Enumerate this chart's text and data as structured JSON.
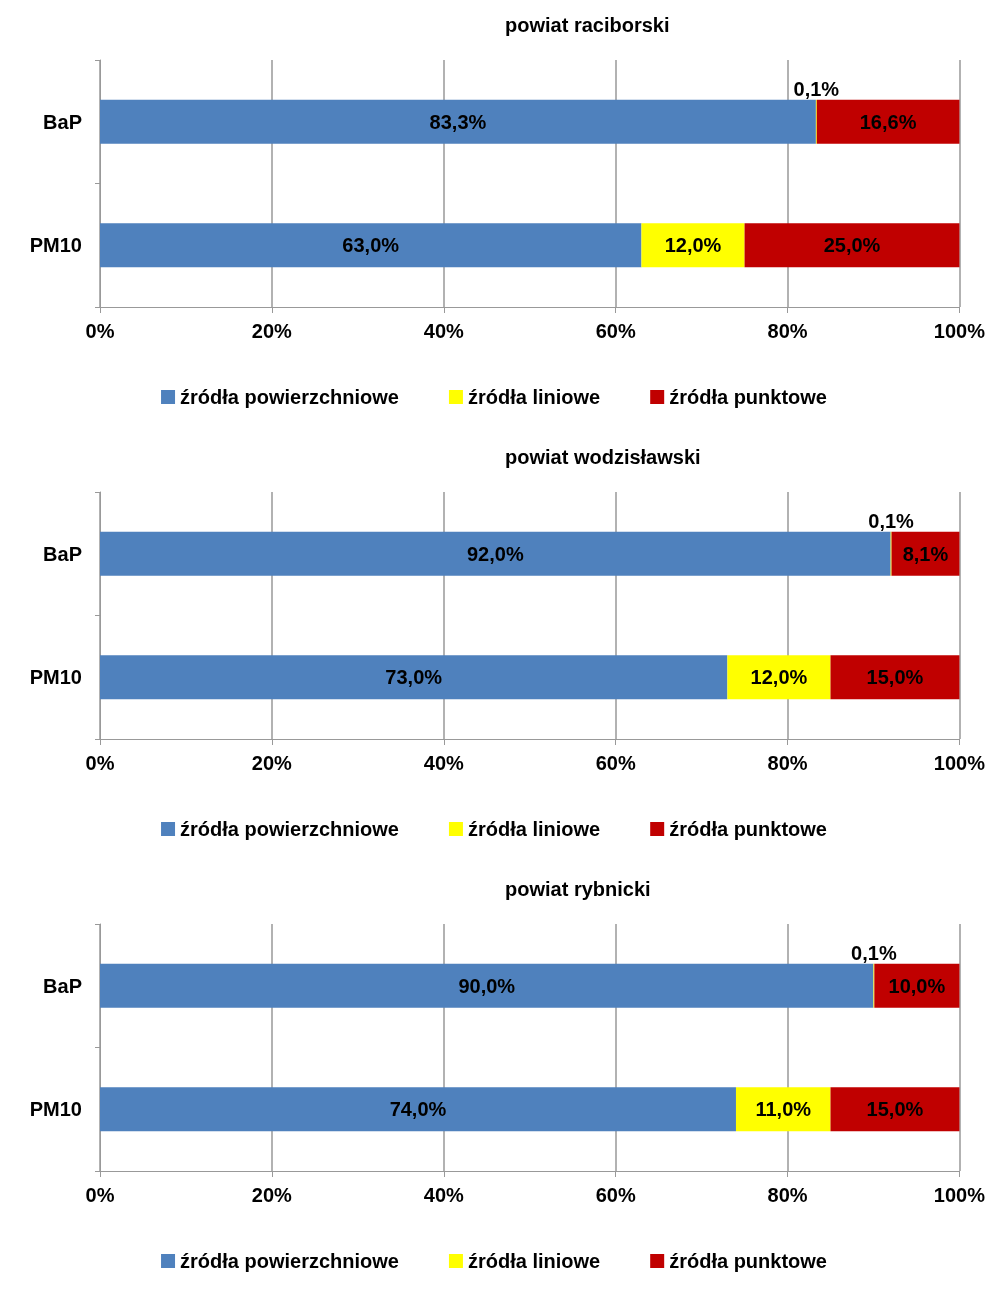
{
  "chart_data": [
    {
      "type": "bar",
      "title": "powiat raciborski",
      "orientation": "horizontal",
      "stacked": true,
      "categories": [
        "BaP",
        "PM10"
      ],
      "series": [
        {
          "name": "źródła powierzchniowe",
          "color": "#4f81bd",
          "values": [
            83.3,
            63.0
          ],
          "value_labels": [
            "83,3%",
            "63,0%"
          ]
        },
        {
          "name": "źródła liniowe",
          "color": "#ffff00",
          "values": [
            0.1,
            12.0
          ],
          "value_labels": [
            "0,1%",
            "12,0%"
          ]
        },
        {
          "name": "źródła punktowe",
          "color": "#c00000",
          "values": [
            16.6,
            25.0
          ],
          "value_labels": [
            "16,6%",
            "25,0%"
          ]
        }
      ],
      "xlim": [
        0,
        100
      ],
      "xticks": [
        {
          "value": 0,
          "label": "0%"
        },
        {
          "value": 20,
          "label": "20%"
        },
        {
          "value": 40,
          "label": "40%"
        },
        {
          "value": 60,
          "label": "60%"
        },
        {
          "value": 80,
          "label": "80%"
        },
        {
          "value": 100,
          "label": "100%"
        }
      ],
      "grid": "x",
      "legend": "bottom"
    },
    {
      "type": "bar",
      "title": "powiat wodzisławski",
      "orientation": "horizontal",
      "stacked": true,
      "categories": [
        "BaP",
        "PM10"
      ],
      "series": [
        {
          "name": "źródła powierzchniowe",
          "color": "#4f81bd",
          "values": [
            92.0,
            73.0
          ],
          "value_labels": [
            "92,0%",
            "73,0%"
          ]
        },
        {
          "name": "źródła liniowe",
          "color": "#ffff00",
          "values": [
            0.1,
            12.0
          ],
          "value_labels": [
            "0,1%",
            "12,0%"
          ]
        },
        {
          "name": "źródła punktowe",
          "color": "#c00000",
          "values": [
            8.1,
            15.0
          ],
          "value_labels": [
            "8,1%",
            "15,0%"
          ]
        }
      ],
      "xlim": [
        0,
        100
      ],
      "xticks": [
        {
          "value": 0,
          "label": "0%"
        },
        {
          "value": 20,
          "label": "20%"
        },
        {
          "value": 40,
          "label": "40%"
        },
        {
          "value": 60,
          "label": "60%"
        },
        {
          "value": 80,
          "label": "80%"
        },
        {
          "value": 100,
          "label": "100%"
        }
      ],
      "grid": "x",
      "legend": "bottom"
    },
    {
      "type": "bar",
      "title": "powiat rybnicki",
      "orientation": "horizontal",
      "stacked": true,
      "categories": [
        "BaP",
        "PM10"
      ],
      "series": [
        {
          "name": "źródła powierzchniowe",
          "color": "#4f81bd",
          "values": [
            90.0,
            74.0
          ],
          "value_labels": [
            "90,0%",
            "74,0%"
          ]
        },
        {
          "name": "źródła liniowe",
          "color": "#ffff00",
          "values": [
            0.1,
            11.0
          ],
          "value_labels": [
            "0,1%",
            "11,0%"
          ]
        },
        {
          "name": "źródła punktowe",
          "color": "#c00000",
          "values": [
            10.0,
            15.0
          ],
          "value_labels": [
            "10,0%",
            "15,0%"
          ]
        }
      ],
      "xlim": [
        0,
        100
      ],
      "xticks": [
        {
          "value": 0,
          "label": "0%"
        },
        {
          "value": 20,
          "label": "20%"
        },
        {
          "value": 40,
          "label": "40%"
        },
        {
          "value": 60,
          "label": "60%"
        },
        {
          "value": 80,
          "label": "80%"
        },
        {
          "value": 100,
          "label": "100%"
        }
      ],
      "grid": "x",
      "legend": "bottom"
    }
  ]
}
